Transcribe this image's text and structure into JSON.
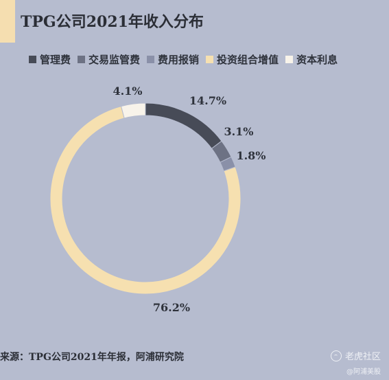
{
  "header": {
    "title": "TPG公司2021年收入分布"
  },
  "source_text": "来源：TPG公司2021年年报，阿浦研究院",
  "watermark": {
    "brand": "老虎社区",
    "sub": "@阿浦美股"
  },
  "colors": {
    "background": "#b6bccf",
    "accent_bar": "#f5deb0"
  },
  "chart_data": {
    "type": "pie",
    "donut": true,
    "title": "TPG公司2021年收入分布",
    "legend_position": "top",
    "series": [
      {
        "name": "管理费",
        "value": 14.7,
        "label": "14.7%",
        "color": "#474b57"
      },
      {
        "name": "交易监管费",
        "value": 3.1,
        "label": "3.1%",
        "color": "#6d7284"
      },
      {
        "name": "费用报销",
        "value": 1.8,
        "label": "1.8%",
        "color": "#8a90a8"
      },
      {
        "name": "投资组合增值",
        "value": 76.2,
        "label": "76.2%",
        "color": "#f6e0b0"
      },
      {
        "name": "资本利息",
        "value": 4.1,
        "label": "4.1%",
        "color": "#f8f3ea"
      }
    ]
  }
}
